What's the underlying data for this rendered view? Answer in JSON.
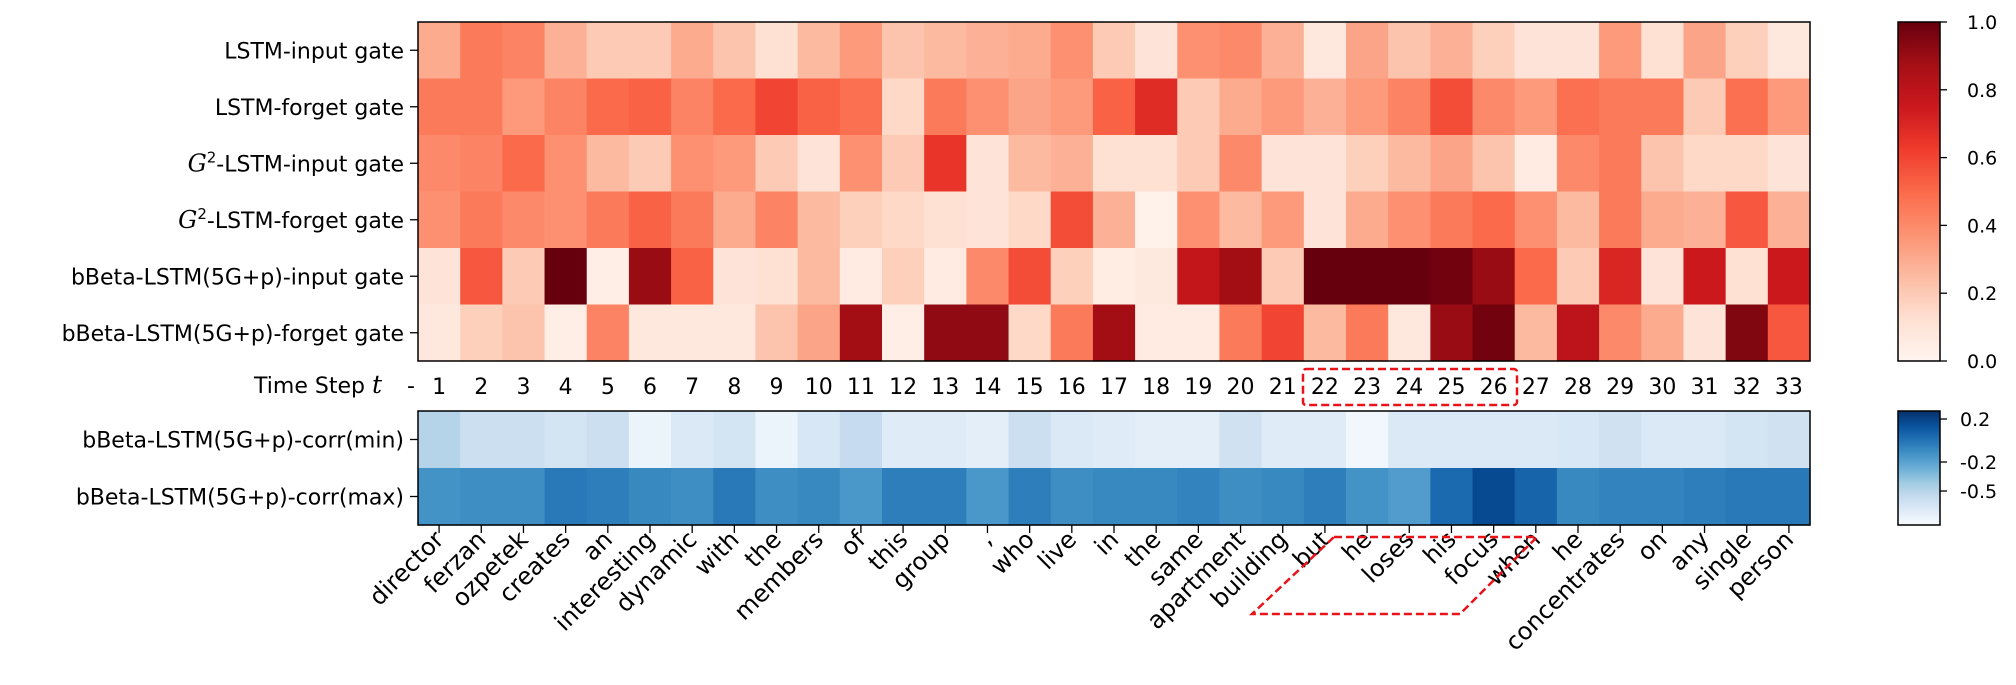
{
  "chart_data": [
    {
      "type": "heatmap",
      "colormap": "Reds",
      "rows": [
        "LSTM-input gate",
        "LSTM-forget gate",
        "G^2-LSTM-input gate",
        "G^2-LSTM-forget gate",
        "bBeta-LSTM(5G+p)-input gate",
        "bBeta-LSTM(5G+p)-forget gate"
      ],
      "x_label_prefix": "Time Step",
      "x_label_var": "t",
      "x_label_dash": "-",
      "x": [
        1,
        2,
        3,
        4,
        5,
        6,
        7,
        8,
        9,
        10,
        11,
        12,
        13,
        14,
        15,
        16,
        17,
        18,
        19,
        20,
        21,
        22,
        23,
        24,
        25,
        26,
        27,
        28,
        29,
        30,
        31,
        32,
        33
      ],
      "values": [
        [
          0.3,
          0.45,
          0.42,
          0.28,
          0.2,
          0.2,
          0.3,
          0.22,
          0.12,
          0.25,
          0.35,
          0.22,
          0.25,
          0.28,
          0.3,
          0.38,
          0.2,
          0.1,
          0.38,
          0.4,
          0.28,
          0.08,
          0.32,
          0.22,
          0.28,
          0.18,
          0.1,
          0.1,
          0.35,
          0.12,
          0.32,
          0.18,
          0.08
        ],
        [
          0.45,
          0.45,
          0.35,
          0.42,
          0.5,
          0.52,
          0.42,
          0.5,
          0.6,
          0.52,
          0.48,
          0.15,
          0.45,
          0.38,
          0.32,
          0.35,
          0.52,
          0.68,
          0.2,
          0.3,
          0.35,
          0.28,
          0.35,
          0.42,
          0.58,
          0.4,
          0.35,
          0.48,
          0.45,
          0.45,
          0.2,
          0.48,
          0.35
        ],
        [
          0.4,
          0.42,
          0.5,
          0.38,
          0.25,
          0.2,
          0.38,
          0.35,
          0.2,
          0.1,
          0.38,
          0.2,
          0.65,
          0.1,
          0.25,
          0.28,
          0.12,
          0.12,
          0.2,
          0.4,
          0.1,
          0.1,
          0.18,
          0.25,
          0.32,
          0.22,
          0.06,
          0.4,
          0.45,
          0.22,
          0.15,
          0.15,
          0.1
        ],
        [
          0.38,
          0.45,
          0.4,
          0.38,
          0.45,
          0.52,
          0.45,
          0.3,
          0.42,
          0.25,
          0.18,
          0.15,
          0.12,
          0.1,
          0.15,
          0.58,
          0.28,
          0.02,
          0.38,
          0.25,
          0.35,
          0.1,
          0.3,
          0.38,
          0.45,
          0.5,
          0.38,
          0.25,
          0.45,
          0.3,
          0.28,
          0.55,
          0.28
        ],
        [
          0.1,
          0.55,
          0.2,
          1.0,
          0.04,
          0.9,
          0.52,
          0.1,
          0.12,
          0.25,
          0.06,
          0.18,
          0.06,
          0.4,
          0.58,
          0.18,
          0.05,
          0.07,
          0.78,
          0.88,
          0.2,
          1.0,
          1.0,
          1.0,
          0.98,
          0.9,
          0.5,
          0.2,
          0.7,
          0.1,
          0.75,
          0.12,
          0.75
        ],
        [
          0.08,
          0.18,
          0.22,
          0.04,
          0.42,
          0.08,
          0.08,
          0.08,
          0.22,
          0.32,
          0.88,
          0.04,
          0.92,
          0.92,
          0.15,
          0.45,
          0.88,
          0.06,
          0.06,
          0.45,
          0.6,
          0.25,
          0.45,
          0.08,
          0.9,
          0.98,
          0.25,
          0.8,
          0.4,
          0.3,
          0.1,
          0.95,
          0.55
        ]
      ],
      "vmin": 0.0,
      "vmax": 1.0,
      "colorbar_ticks": [
        "0.0",
        "0.2",
        "0.4",
        "0.6",
        "0.8",
        "1.0"
      ],
      "highlight_time_steps": [
        22,
        23,
        24,
        25,
        26
      ]
    },
    {
      "type": "heatmap",
      "colormap": "Blues",
      "rows": [
        "bBeta-LSTM(5G+p)-corr(min)",
        "bBeta-LSTM(5G+p)-corr(max)"
      ],
      "x_tick_labels": [
        "director",
        "ferzan",
        "ozpetek",
        "creates",
        "an",
        "interesting",
        "dynamic",
        "with",
        "the",
        "members",
        "of",
        "this",
        "group",
        ",",
        "who",
        "live",
        "in",
        "the",
        "same",
        "apartment",
        "building",
        "but",
        "he",
        "loses",
        "his",
        "focus",
        "when",
        "he",
        "concentrates",
        "on",
        "any",
        "single",
        "person"
      ],
      "values": [
        [
          0.3,
          0.22,
          0.22,
          0.18,
          0.22,
          0.06,
          0.14,
          0.18,
          0.06,
          0.16,
          0.25,
          0.12,
          0.12,
          0.1,
          0.22,
          0.14,
          0.12,
          0.1,
          0.1,
          0.2,
          0.12,
          0.12,
          0.03,
          0.14,
          0.14,
          0.14,
          0.14,
          0.16,
          0.2,
          0.14,
          0.14,
          0.18,
          0.2
        ],
        [
          0.62,
          0.64,
          0.64,
          0.72,
          0.7,
          0.66,
          0.64,
          0.72,
          0.64,
          0.66,
          0.6,
          0.7,
          0.7,
          0.6,
          0.7,
          0.64,
          0.66,
          0.66,
          0.68,
          0.64,
          0.66,
          0.7,
          0.62,
          0.58,
          0.78,
          0.9,
          0.8,
          0.66,
          0.68,
          0.68,
          0.7,
          0.72,
          0.72
        ]
      ],
      "colorbar_ticks": [
        "0.2",
        "-0.2",
        "-0.5"
      ],
      "highlight_words": [
        "but",
        "he",
        "loses",
        "his",
        "focus"
      ]
    }
  ]
}
